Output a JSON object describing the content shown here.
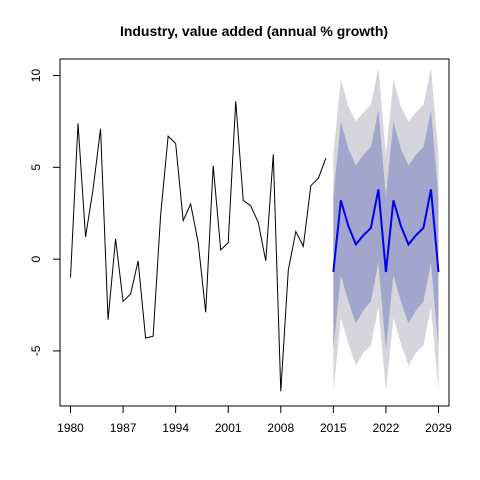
{
  "chart_data": {
    "type": "line",
    "title": "Industry, value added (annual % growth)",
    "xlabel": "",
    "ylabel": "",
    "xlim": [
      1978.6,
      2030.4
    ],
    "ylim": [
      -8.0,
      10.9
    ],
    "grid": false,
    "x_ticks": [
      1980,
      1987,
      1994,
      2001,
      2008,
      2015,
      2022,
      2029
    ],
    "y_ticks": [
      -5,
      0,
      5,
      10
    ],
    "series": [
      {
        "role": "history",
        "color": "#000000",
        "x": [
          1980,
          1981,
          1982,
          1983,
          1984,
          1985,
          1986,
          1987,
          1988,
          1989,
          1990,
          1991,
          1992,
          1993,
          1994,
          1995,
          1996,
          1997,
          1998,
          1999,
          2000,
          2001,
          2002,
          2003,
          2004,
          2005,
          2006,
          2007,
          2008,
          2009,
          2010,
          2011,
          2012,
          2013,
          2014
        ],
        "y": [
          -1.0,
          7.4,
          1.2,
          3.8,
          7.1,
          -3.3,
          1.1,
          -2.3,
          -1.9,
          -0.1,
          -4.3,
          -4.2,
          2.4,
          6.7,
          6.3,
          2.1,
          3.0,
          0.9,
          -2.9,
          5.1,
          0.5,
          0.9,
          8.6,
          3.2,
          2.9,
          2.0,
          -0.1,
          5.7,
          -7.2,
          -0.6,
          1.5,
          0.7,
          4.0,
          4.4,
          5.5
        ]
      },
      {
        "role": "forecast",
        "color": "#0000ee",
        "x": [
          2015,
          2016,
          2017,
          2018,
          2019,
          2020,
          2021,
          2022,
          2023,
          2024,
          2025,
          2026,
          2027,
          2028,
          2029
        ],
        "y": [
          -0.7,
          3.2,
          1.8,
          0.8,
          1.3,
          1.7,
          3.8,
          -0.7,
          3.2,
          1.8,
          0.8,
          1.3,
          1.7,
          3.8,
          -0.7
        ],
        "lower80": [
          -4.9,
          -0.9,
          -2.3,
          -3.5,
          -2.8,
          -2.3,
          -0.2,
          -4.9,
          -0.9,
          -2.3,
          -3.5,
          -2.8,
          -2.3,
          -0.2,
          -4.9
        ],
        "upper80": [
          3.4,
          7.5,
          6.0,
          5.1,
          5.7,
          6.1,
          8.1,
          3.4,
          7.5,
          6.0,
          5.1,
          5.7,
          6.1,
          8.1,
          3.4
        ],
        "lower95": [
          -7.2,
          -3.2,
          -4.6,
          -5.8,
          -5.1,
          -4.7,
          -2.6,
          -7.2,
          -3.2,
          -4.6,
          -5.8,
          -5.1,
          -4.7,
          -2.6,
          -7.2
        ],
        "upper95": [
          5.7,
          9.8,
          8.3,
          7.5,
          8.0,
          8.4,
          10.4,
          5.7,
          9.8,
          8.3,
          7.5,
          8.0,
          8.4,
          10.4,
          5.7
        ],
        "band95_color": "#d5d5db",
        "band80_color": "#a3a6cc"
      }
    ]
  }
}
